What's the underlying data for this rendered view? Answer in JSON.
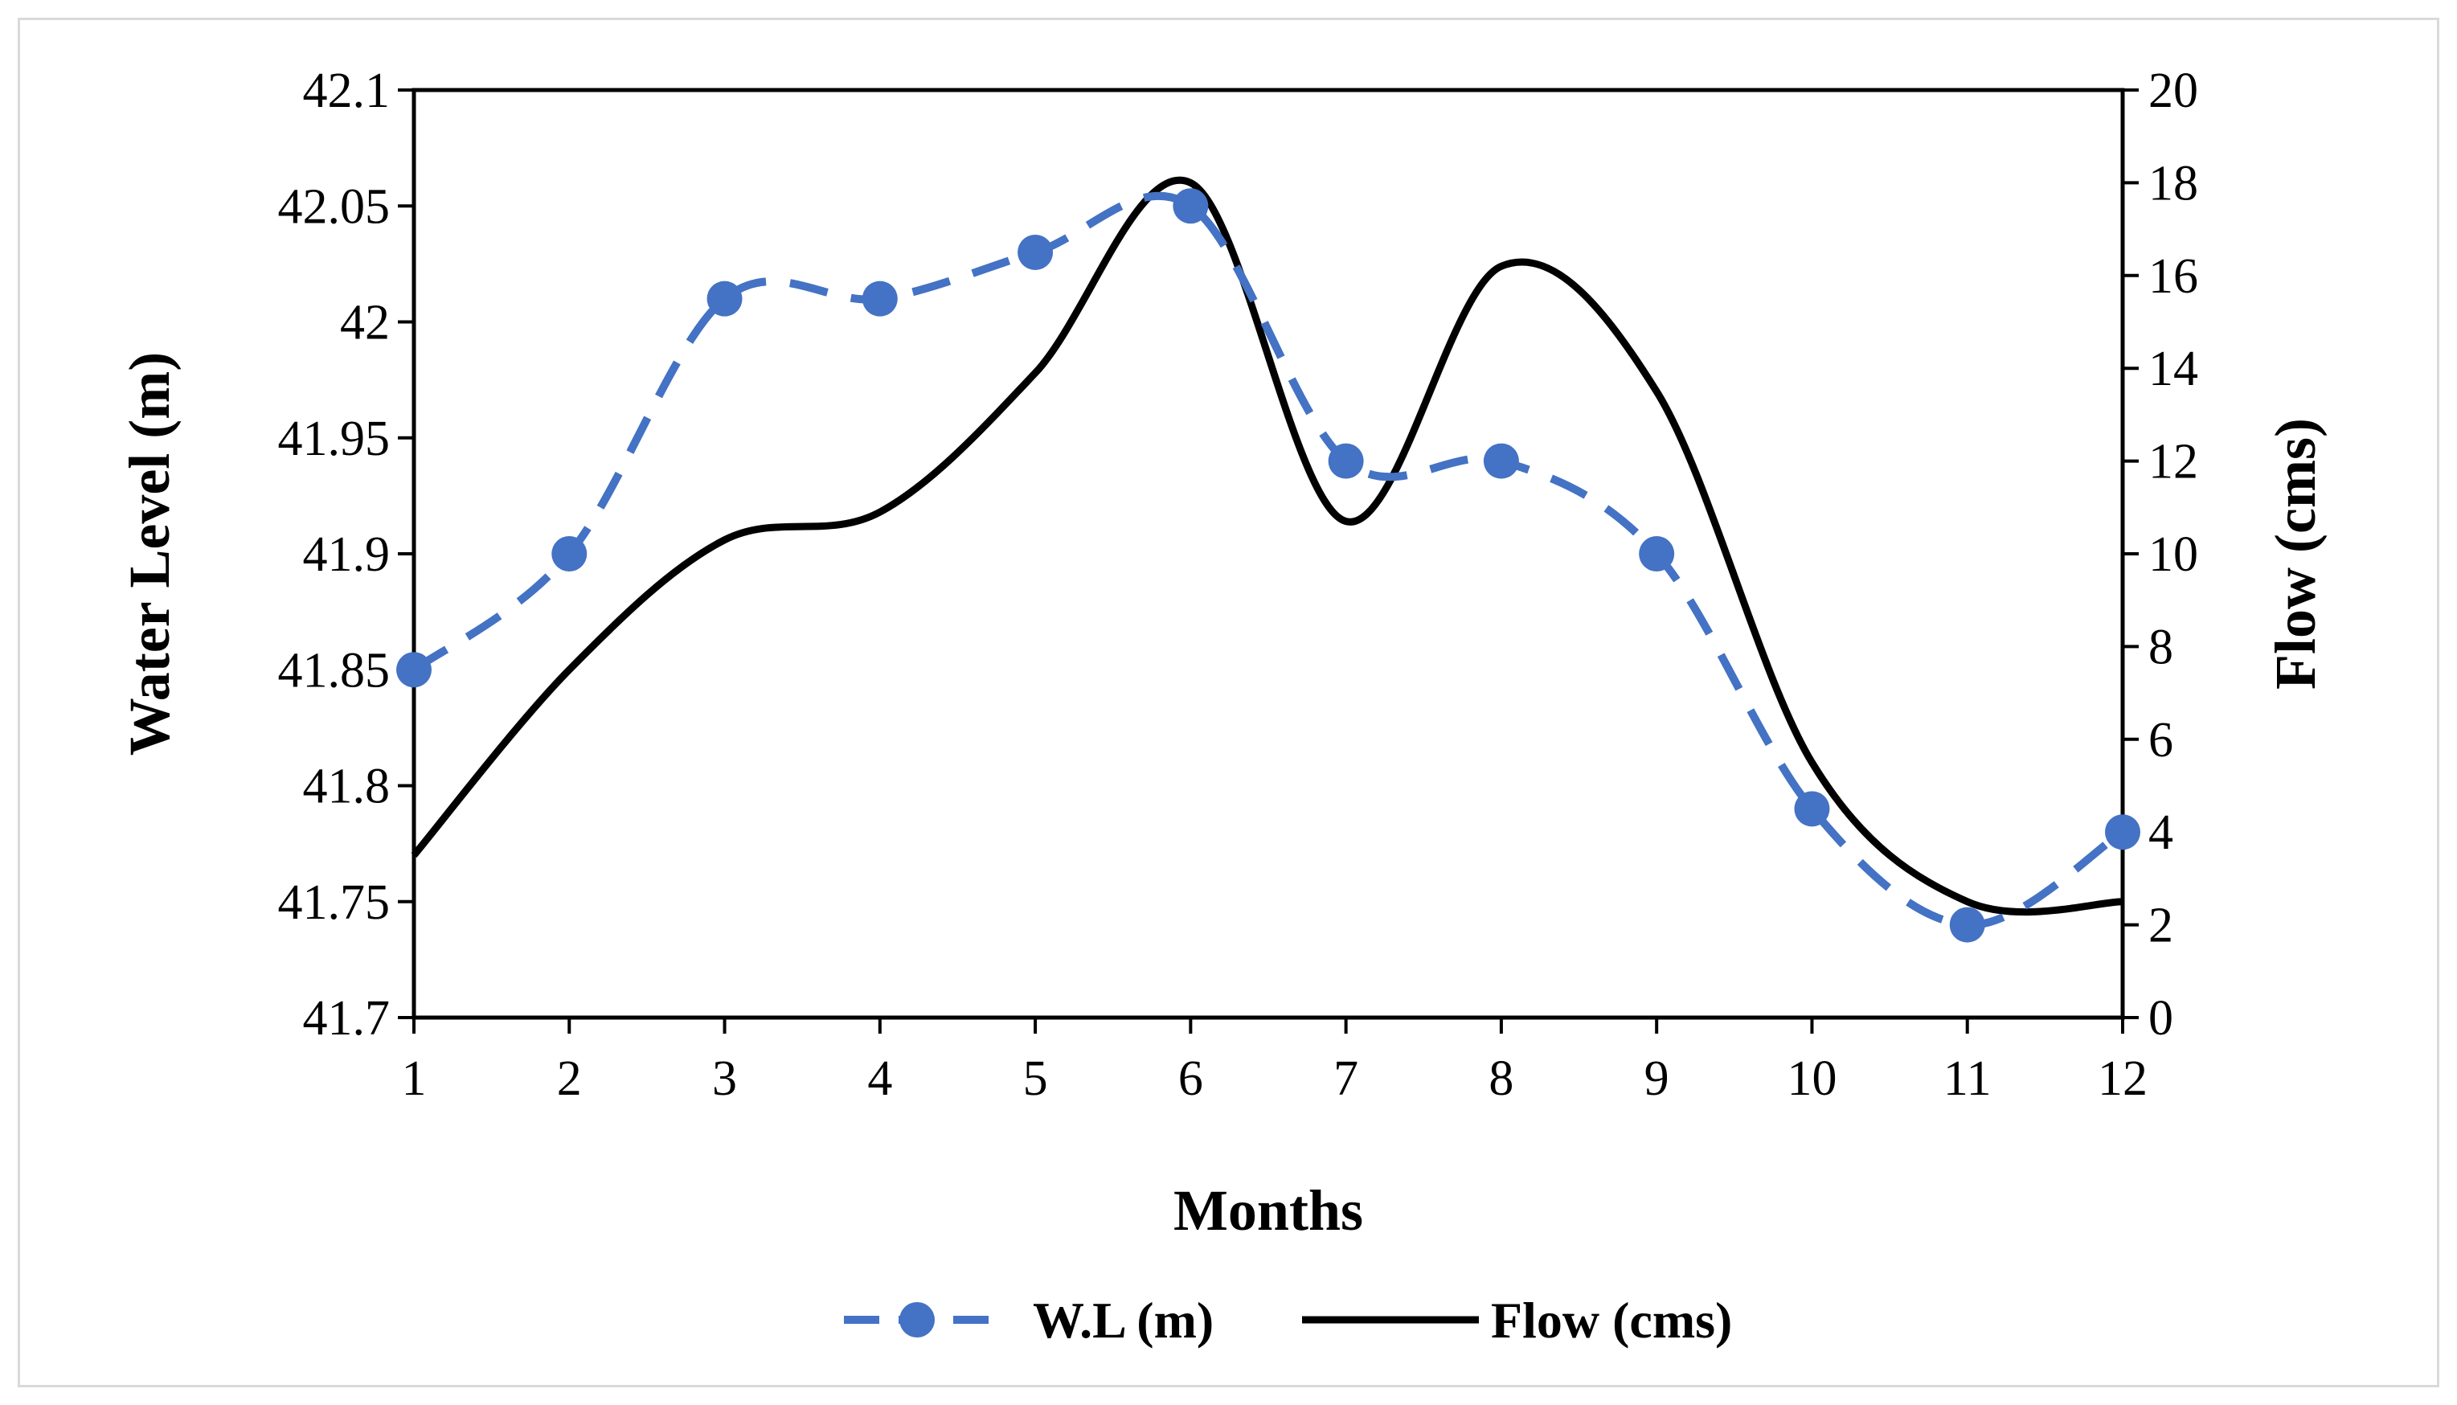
{
  "chart_data": {
    "type": "line",
    "x": [
      1,
      2,
      3,
      4,
      5,
      6,
      7,
      8,
      9,
      10,
      11,
      12
    ],
    "xlabel": "Months",
    "ylabel": "Water Level (m)",
    "y2label": "Flow (cms)",
    "ylim": [
      41.7,
      42.1
    ],
    "y_ticks": [
      "41.7",
      "41.75",
      "41.8",
      "41.85",
      "41.9",
      "41.95",
      "42",
      "42.05",
      "42.1"
    ],
    "y2lim": [
      0,
      20
    ],
    "y2_ticks": [
      "0",
      "2",
      "4",
      "6",
      "8",
      "10",
      "12",
      "14",
      "16",
      "18",
      "20"
    ],
    "x_ticks": [
      "1",
      "2",
      "3",
      "4",
      "5",
      "6",
      "7",
      "8",
      "9",
      "10",
      "11",
      "12"
    ],
    "grid": false,
    "legend_position": "bottom",
    "series": [
      {
        "name": "W.L (m)",
        "axis": "left",
        "style": "dashed-with-markers",
        "color": "#4472C4",
        "values": [
          41.85,
          41.9,
          42.01,
          42.01,
          42.03,
          42.05,
          41.94,
          41.94,
          41.9,
          41.79,
          41.74,
          41.78
        ]
      },
      {
        "name": "Flow (cms)",
        "axis": "right",
        "style": "solid",
        "color": "#000000",
        "values": [
          3.5,
          7.5,
          10.3,
          10.9,
          13.9,
          18.0,
          10.7,
          16.2,
          13.5,
          5.5,
          2.5,
          2.5
        ]
      }
    ]
  }
}
